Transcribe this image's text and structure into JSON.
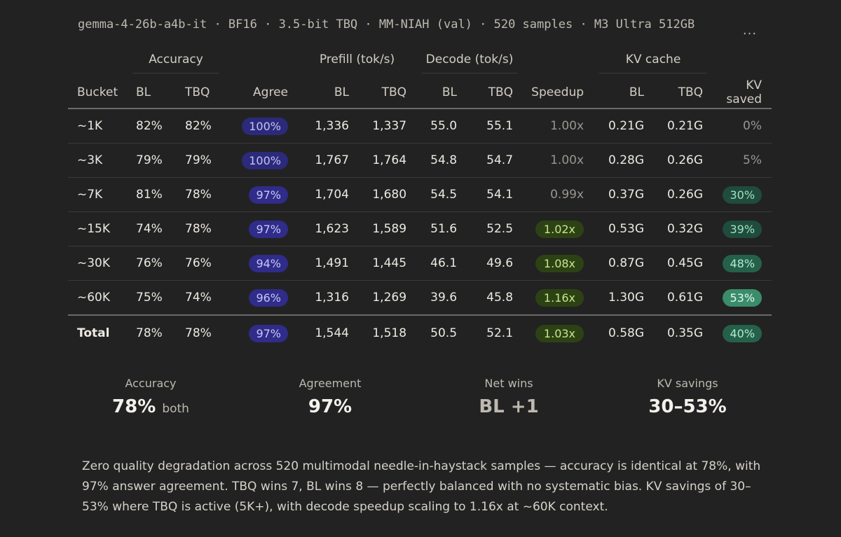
{
  "header": {
    "meta": "gemma-4-26b-a4b-it · BF16 · 3.5-bit TBQ · MM-NIAH (val) · 520 samples · M3 Ultra 512GB",
    "more_icon": "more-horizontal-icon",
    "more_glyph": "···"
  },
  "table": {
    "groups": {
      "accuracy": "Accuracy",
      "prefill": "Prefill (tok/s)",
      "decode": "Decode (tok/s)",
      "kv_cache": "KV cache"
    },
    "columns": {
      "bucket": "Bucket",
      "acc_bl": "BL",
      "acc_tbq": "TBQ",
      "agree": "Agree",
      "prefill_bl": "BL",
      "prefill_tbq": "TBQ",
      "decode_bl": "BL",
      "decode_tbq": "TBQ",
      "speedup": "Speedup",
      "kv_bl": "BL",
      "kv_tbq": "TBQ",
      "kv_saved": "KV saved"
    },
    "rows": [
      {
        "bucket": "~1K",
        "acc_bl": "82%",
        "acc_tbq": "82%",
        "agree": "100%",
        "prefill_bl": "1,336",
        "prefill_tbq": "1,337",
        "decode_bl": "55.0",
        "decode_tbq": "55.1",
        "speedup": "1.00x",
        "kv_bl": "0.21G",
        "kv_tbq": "0.21G",
        "kv_saved": "0%"
      },
      {
        "bucket": "~3K",
        "acc_bl": "79%",
        "acc_tbq": "79%",
        "agree": "100%",
        "prefill_bl": "1,767",
        "prefill_tbq": "1,764",
        "decode_bl": "54.8",
        "decode_tbq": "54.7",
        "speedup": "1.00x",
        "kv_bl": "0.28G",
        "kv_tbq": "0.26G",
        "kv_saved": "5%"
      },
      {
        "bucket": "~7K",
        "acc_bl": "81%",
        "acc_tbq": "78%",
        "agree": "97%",
        "prefill_bl": "1,704",
        "prefill_tbq": "1,680",
        "decode_bl": "54.5",
        "decode_tbq": "54.1",
        "speedup": "0.99x",
        "kv_bl": "0.37G",
        "kv_tbq": "0.26G",
        "kv_saved": "30%"
      },
      {
        "bucket": "~15K",
        "acc_bl": "74%",
        "acc_tbq": "78%",
        "agree": "97%",
        "prefill_bl": "1,623",
        "prefill_tbq": "1,589",
        "decode_bl": "51.6",
        "decode_tbq": "52.5",
        "speedup": "1.02x",
        "kv_bl": "0.53G",
        "kv_tbq": "0.32G",
        "kv_saved": "39%"
      },
      {
        "bucket": "~30K",
        "acc_bl": "76%",
        "acc_tbq": "76%",
        "agree": "94%",
        "prefill_bl": "1,491",
        "prefill_tbq": "1,445",
        "decode_bl": "46.1",
        "decode_tbq": "49.6",
        "speedup": "1.08x",
        "kv_bl": "0.87G",
        "kv_tbq": "0.45G",
        "kv_saved": "48%"
      },
      {
        "bucket": "~60K",
        "acc_bl": "75%",
        "acc_tbq": "74%",
        "agree": "96%",
        "prefill_bl": "1,316",
        "prefill_tbq": "1,269",
        "decode_bl": "39.6",
        "decode_tbq": "45.8",
        "speedup": "1.16x",
        "kv_bl": "1.30G",
        "kv_tbq": "0.61G",
        "kv_saved": "53%"
      }
    ],
    "total": {
      "bucket": "Total",
      "acc_bl": "78%",
      "acc_tbq": "78%",
      "agree": "97%",
      "prefill_bl": "1,544",
      "prefill_tbq": "1,518",
      "decode_bl": "50.5",
      "decode_tbq": "52.1",
      "speedup": "1.03x",
      "kv_bl": "0.58G",
      "kv_tbq": "0.35G",
      "kv_saved": "40%"
    }
  },
  "summary": {
    "accuracy_label": "Accuracy",
    "accuracy_value": "78%",
    "accuracy_suffix": "both",
    "agreement_label": "Agreement",
    "agreement_value": "97%",
    "net_wins_label": "Net wins",
    "net_wins_value": "BL +1",
    "kv_savings_label": "KV savings",
    "kv_savings_value": "30–53%"
  },
  "description": "Zero quality degradation across 520 multimodal needle-in-haystack samples — accuracy is identical at 78%, with 97% answer agreement. TBQ wins 7, BL wins 8 — perfectly balanced with no systematic bias. KV savings of 30–53% where TBQ is active (5K+), with decode speedup scaling to 1.16x at ~60K context.",
  "colors": {
    "background": "#222222",
    "agree_pill": "#2f2c8a",
    "speedup_pill": "#2d4214",
    "kv_pill_low": "#1f4c3c",
    "kv_pill_mid": "#25614a",
    "kv_pill_high": "#3a8c6a"
  }
}
